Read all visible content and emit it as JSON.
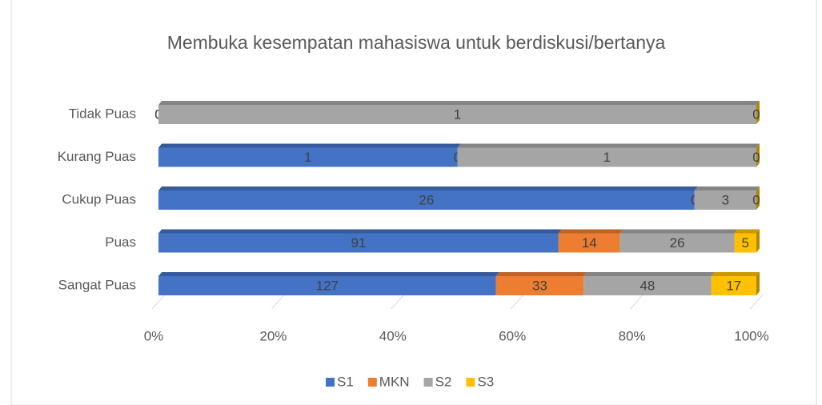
{
  "chart_data": {
    "type": "stacked-bar-100",
    "orientation": "horizontal",
    "title": "Membuka kesempatan mahasiswa untuk berdiskusi/bertanya",
    "categories": [
      "Sangat Puas",
      "Puas",
      "Cukup Puas",
      "Kurang Puas",
      "Tidak Puas"
    ],
    "series": [
      {
        "name": "S1",
        "color": "#4472c4",
        "values": [
          127,
          91,
          26,
          1,
          0
        ]
      },
      {
        "name": "MKN",
        "color": "#ed7d31",
        "values": [
          33,
          14,
          0,
          0,
          0
        ]
      },
      {
        "name": "S2",
        "color": "#a5a5a5",
        "values": [
          48,
          26,
          3,
          1,
          1
        ]
      },
      {
        "name": "S3",
        "color": "#ffc000",
        "values": [
          17,
          5,
          0,
          0,
          0
        ]
      }
    ],
    "xlim": [
      0,
      100
    ],
    "xticks": [
      {
        "value": 0,
        "label": "0%"
      },
      {
        "value": 20,
        "label": "20%"
      },
      {
        "value": 40,
        "label": "40%"
      },
      {
        "value": 60,
        "label": "60%"
      },
      {
        "value": 80,
        "label": "80%"
      },
      {
        "value": 100,
        "label": "100%"
      }
    ],
    "legend": "bottom",
    "grid": true
  }
}
